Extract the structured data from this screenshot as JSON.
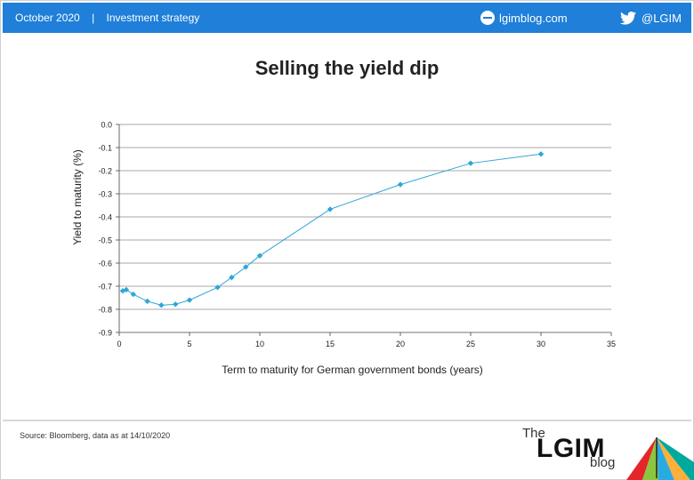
{
  "header": {
    "date": "October 2020",
    "separator": "|",
    "section": "Investment strategy",
    "site": "lgimblog.com",
    "twitter": "@LGIM",
    "bar_color": "#1f7fd9"
  },
  "footer": {
    "source": "Source: Bloomberg, data as at 14/10/2020",
    "logo_the": "The",
    "logo_lgim": "LGIM",
    "logo_blog": "blog"
  },
  "chart_data": {
    "type": "line",
    "title": "Selling the yield dip",
    "xlabel": "Term to maturity for German government bonds (years)",
    "ylabel": "Yield to maturity (%)",
    "xlim": [
      0,
      35
    ],
    "ylim": [
      -0.9,
      0.0
    ],
    "xticks": [
      0,
      5,
      10,
      15,
      20,
      25,
      30,
      35
    ],
    "yticks": [
      0.0,
      -0.1,
      -0.2,
      -0.3,
      -0.4,
      -0.5,
      -0.6,
      -0.7,
      -0.8,
      -0.9
    ],
    "ytick_labels": [
      "0.0",
      "-0.1",
      "-0.2",
      "-0.3",
      "-0.4",
      "-0.5",
      "-0.6",
      "-0.7",
      "-0.8",
      "-0.9"
    ],
    "grid": "horizontal",
    "series_color": "#2ea7d6",
    "series": [
      {
        "x": [
          0.25,
          0.5,
          1,
          2,
          3,
          4,
          5,
          7,
          8,
          9,
          10,
          15,
          20,
          25,
          30
        ],
        "y": [
          -0.72,
          -0.715,
          -0.735,
          -0.765,
          -0.782,
          -0.778,
          -0.76,
          -0.705,
          -0.662,
          -0.617,
          -0.568,
          -0.367,
          -0.26,
          -0.168,
          -0.128
        ]
      }
    ]
  }
}
